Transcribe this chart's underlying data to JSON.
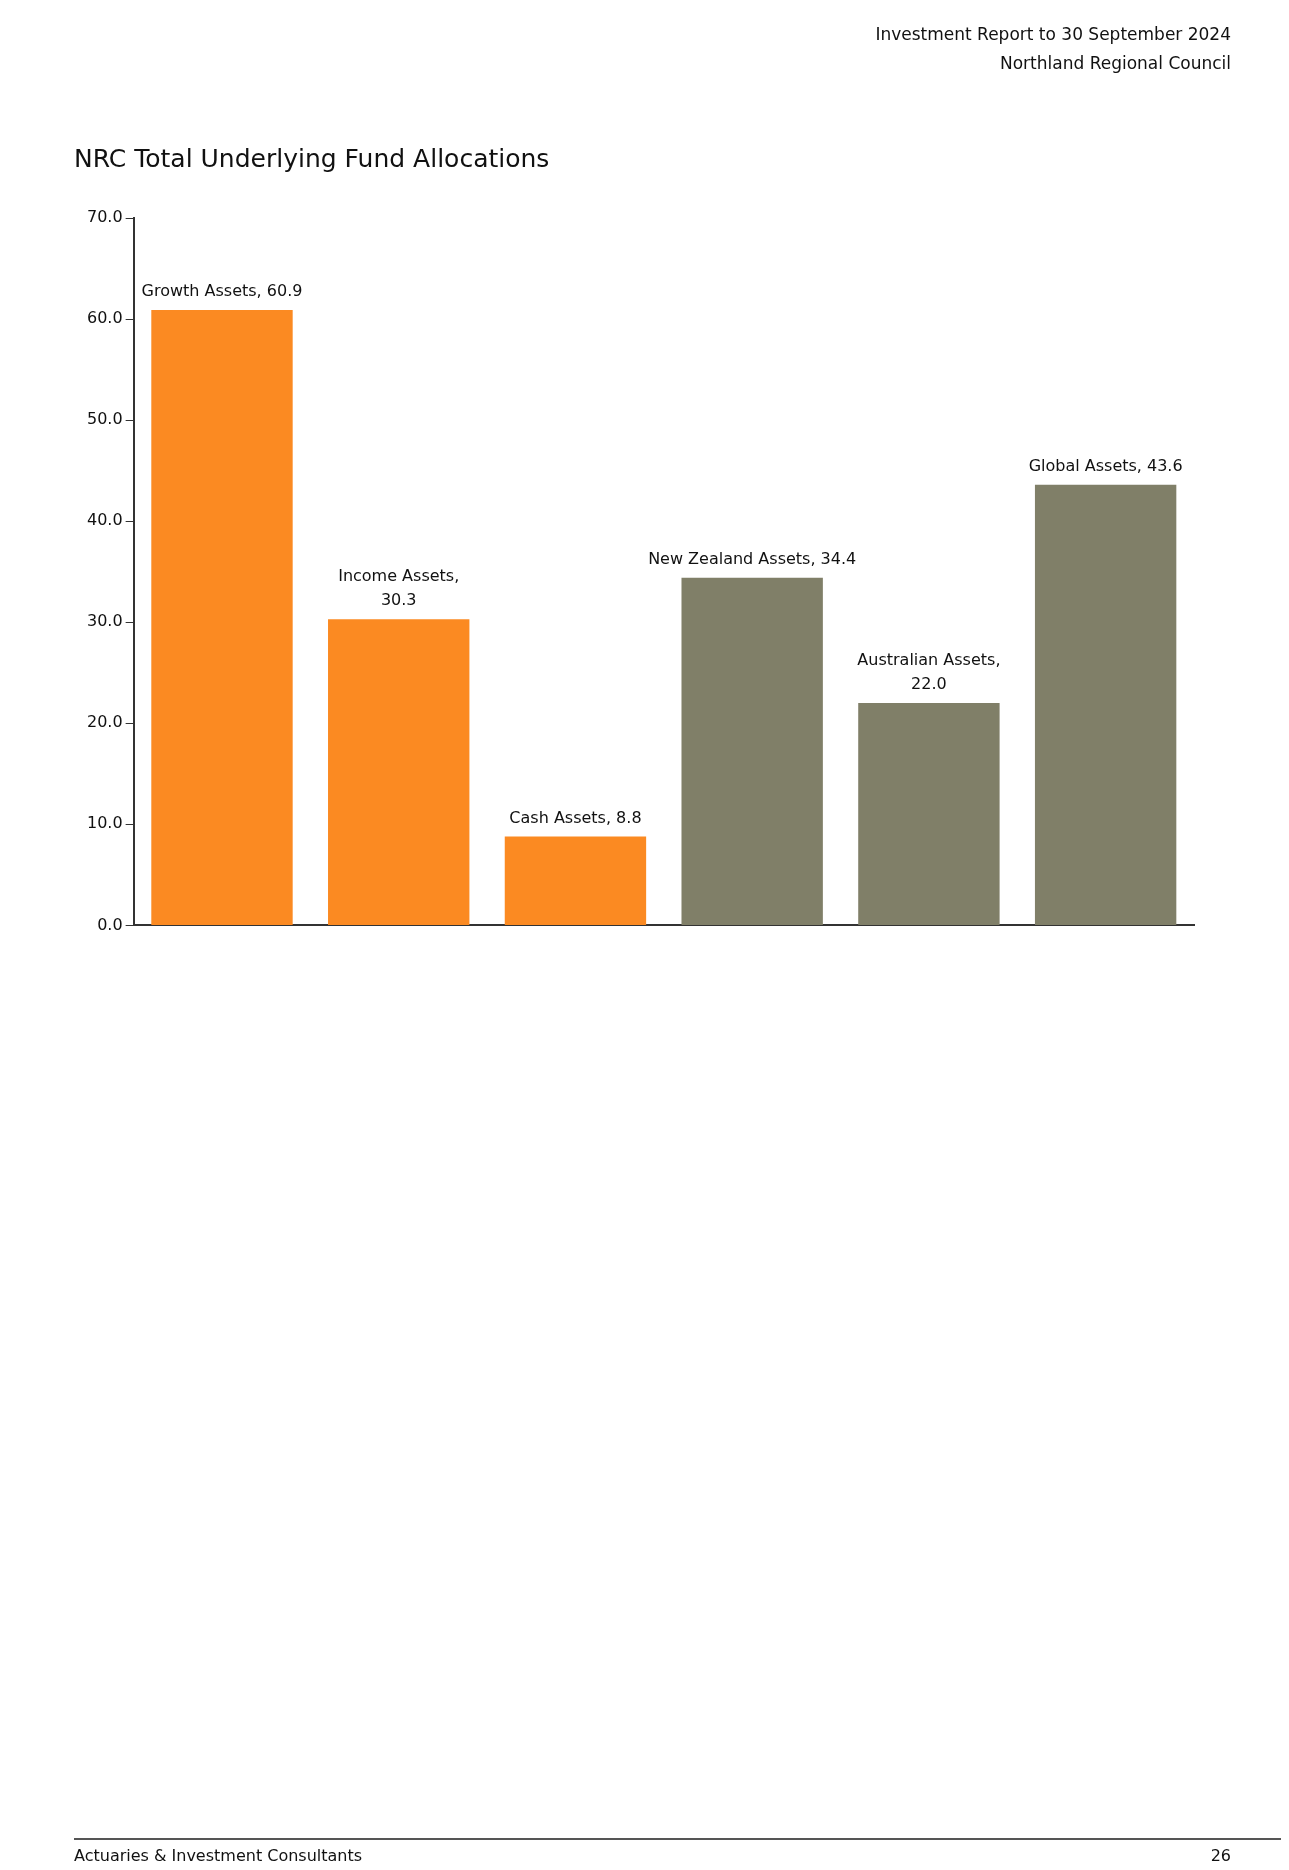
{
  "chart_data": {
    "type": "bar",
    "title": "NRC Total Underlying Fund Allocations",
    "subtitle": "Investment Report to 30 September 2024\nNorthland Regional Council",
    "categories": [
      null,
      null,
      null,
      null,
      null,
      null
    ],
    "values": [
      60.9,
      30.3,
      8.8,
      34.4,
      22.0,
      43.6
    ],
    "colors": [
      "#fb8a22",
      "#fb8a22",
      "#fb8a22",
      "#807f68",
      "#807f68",
      "#807f68"
    ],
    "value_labels": [
      "Growth Assets, 60.9",
      "Income Assets, 30.3",
      "Cash Assets, 8.8",
      "New Zealand Assets, 34.4",
      "Australian Assets, 22.0",
      "Global Assets, 43.6"
    ],
    "ylim": [
      0,
      70
    ],
    "yticks": [
      {
        "value": 0,
        "label": "0.0"
      },
      {
        "value": 10,
        "label": "10.0"
      },
      {
        "value": 20,
        "label": "20.0"
      },
      {
        "value": 30,
        "label": "30.0"
      },
      {
        "value": 40,
        "label": "40.0"
      },
      {
        "value": 50,
        "label": "50.0"
      },
      {
        "value": 60,
        "label": "60.0"
      },
      {
        "value": 70,
        "label": "70.0"
      }
    ],
    "tick_labels": "y",
    "grid": false,
    "legend": false,
    "annotations": [
      "Actuaries & Investment Consultants",
      "26"
    ]
  }
}
